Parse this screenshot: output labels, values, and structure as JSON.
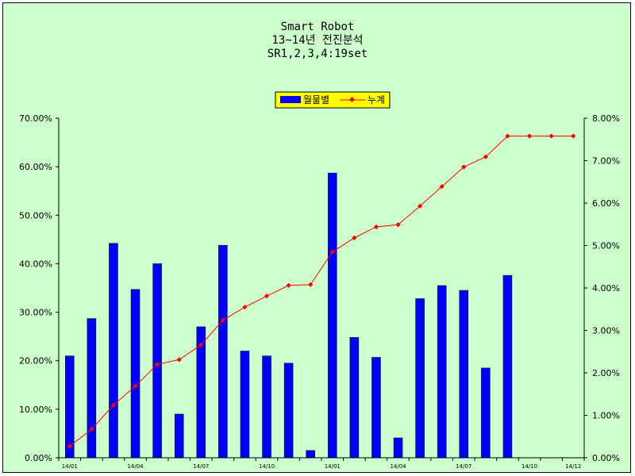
{
  "chart_data": {
    "type": "bar",
    "title_lines": [
      "Smart Robot",
      "13~14년 전진분석",
      "SR1,2,3,4:19set"
    ],
    "categories": [
      "14/01",
      "",
      "",
      "14/04",
      "",
      "",
      "14/07",
      "",
      "",
      "14/10",
      "",
      "",
      "14/01",
      "",
      "",
      "14/04",
      "",
      "",
      "14/07",
      "",
      "",
      "14/10",
      "",
      "14/12"
    ],
    "series": [
      {
        "name": "월물별",
        "type": "bar",
        "axis": "left",
        "color": "#0000ff",
        "values": [
          21.0,
          28.7,
          44.2,
          34.7,
          40.0,
          9.0,
          27.0,
          43.8,
          22.0,
          21.0,
          19.5,
          1.5,
          58.7,
          24.8,
          20.7,
          4.1,
          32.8,
          35.5,
          34.5,
          18.5,
          37.6,
          0,
          0,
          0
        ]
      },
      {
        "name": "누계",
        "type": "line",
        "axis": "right",
        "color": "#ff0000",
        "values": [
          0.27,
          0.67,
          1.24,
          1.69,
          2.2,
          2.31,
          2.66,
          3.24,
          3.55,
          3.81,
          4.06,
          4.08,
          4.85,
          5.18,
          5.44,
          5.49,
          5.93,
          6.39,
          6.85,
          7.09,
          7.58,
          7.58,
          7.58,
          7.58
        ]
      }
    ],
    "y_left": {
      "min": 0,
      "max": 70,
      "step": 10,
      "format": "percent2"
    },
    "y_right": {
      "min": 0,
      "max": 8,
      "step": 1,
      "format": "percent2"
    },
    "legend_position": "top-center",
    "grid": false
  }
}
